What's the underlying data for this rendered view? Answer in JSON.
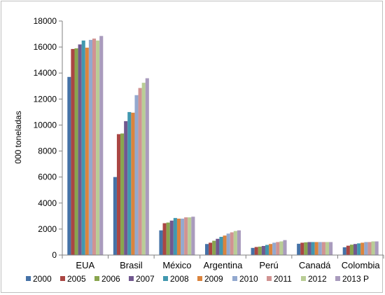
{
  "chart_data": {
    "type": "bar",
    "title": "",
    "xlabel": "",
    "ylabel": "000 toneladas",
    "ylim": [
      0,
      18000
    ],
    "yticks": [
      0,
      2000,
      4000,
      6000,
      8000,
      10000,
      12000,
      14000,
      16000,
      18000
    ],
    "grid": false,
    "legend_position": "bottom",
    "categories": [
      "EUA",
      "Brasil",
      "México",
      "Argentina",
      "Perú",
      "Canadá",
      "Colombia"
    ],
    "series": [
      {
        "name": "2000",
        "color": "#4572A7",
        "values": [
          13700,
          6000,
          1900,
          850,
          550,
          870,
          600
        ]
      },
      {
        "name": "2005",
        "color": "#AA4643",
        "values": [
          15850,
          9300,
          2450,
          950,
          620,
          950,
          720
        ]
      },
      {
        "name": "2006",
        "color": "#89A54E",
        "values": [
          15900,
          9350,
          2500,
          1100,
          650,
          980,
          800
        ]
      },
      {
        "name": "2007",
        "color": "#71588F",
        "values": [
          16200,
          10300,
          2650,
          1250,
          700,
          1000,
          850
        ]
      },
      {
        "name": "2008",
        "color": "#4198AF",
        "values": [
          16500,
          11000,
          2850,
          1400,
          780,
          1000,
          900
        ]
      },
      {
        "name": "2009",
        "color": "#DB843D",
        "values": [
          15950,
          10950,
          2800,
          1500,
          850,
          1000,
          950
        ]
      },
      {
        "name": "2010",
        "color": "#93A9CF",
        "values": [
          16550,
          12300,
          2800,
          1650,
          950,
          1000,
          1000
        ]
      },
      {
        "name": "2011",
        "color": "#D19392",
        "values": [
          16650,
          12850,
          2900,
          1750,
          1000,
          1000,
          1000
        ]
      },
      {
        "name": "2012",
        "color": "#B9CD96",
        "values": [
          16500,
          13250,
          2900,
          1850,
          1050,
          1000,
          1050
        ]
      },
      {
        "name": "2013 P",
        "color": "#A99BBD",
        "values": [
          16850,
          13600,
          2950,
          1900,
          1150,
          1000,
          1050
        ]
      }
    ]
  }
}
